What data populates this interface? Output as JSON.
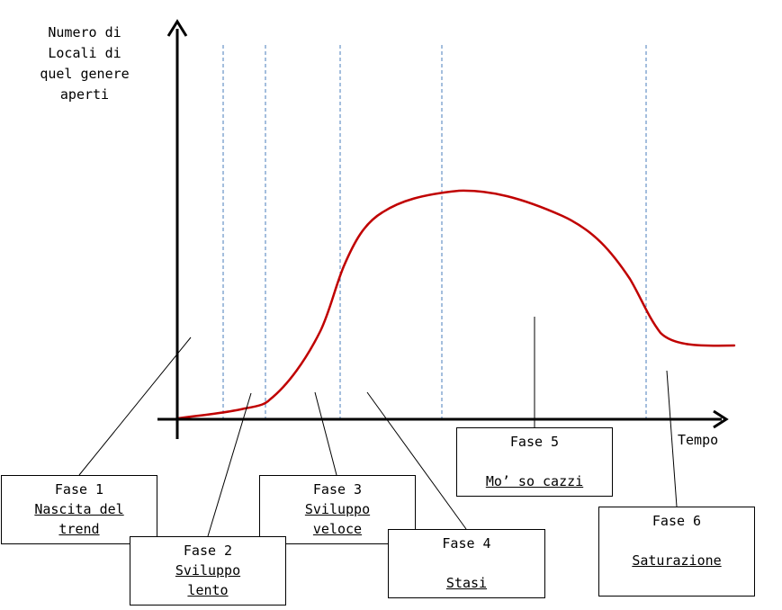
{
  "axes": {
    "y_label": [
      "Numero di",
      "Locali di",
      "quel genere",
      "aperti"
    ],
    "x_label": "Tempo"
  },
  "colors": {
    "curve": "#c00000",
    "phase_line": "#4a7ebb",
    "axis": "#000000"
  },
  "phases": [
    {
      "title": "Fase 1",
      "desc": [
        "Nascita del",
        "trend"
      ]
    },
    {
      "title": "Fase 2",
      "desc": [
        "Sviluppo",
        "lento"
      ]
    },
    {
      "title": "Fase 3",
      "desc": [
        "Sviluppo",
        "veloce"
      ]
    },
    {
      "title": "Fase 4",
      "desc": [
        "Stasi"
      ]
    },
    {
      "title": "Fase 5",
      "desc": [
        "Mo’ so cazzi"
      ]
    },
    {
      "title": "Fase 6",
      "desc": [
        "Saturazione"
      ]
    }
  ]
}
